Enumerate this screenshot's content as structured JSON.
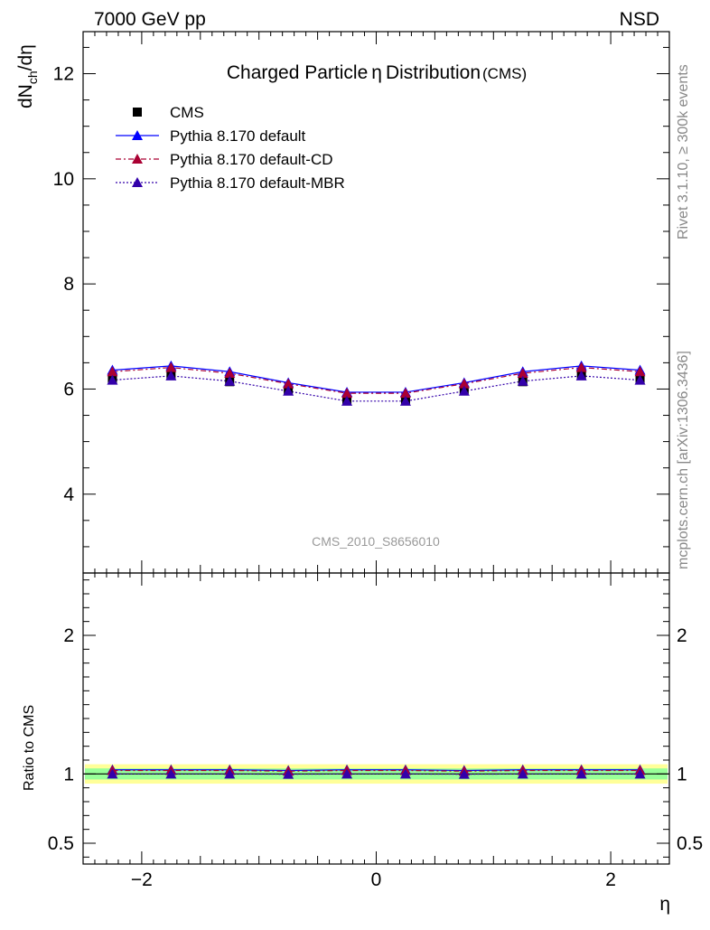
{
  "header": {
    "energy_label": "7000 GeV pp",
    "process_label": "NSD",
    "title": "Charged Particle",
    "title_eta": "η",
    "title_rest": "Distribution",
    "title_suffix": "(CMS)",
    "rivet_label": "Rivet 3.1.10, ≥ 300k events",
    "mcplots_label": "mcplots.cern.ch [arXiv:1306.3436]",
    "analysis_label": "CMS_2010_S8656010"
  },
  "axes": {
    "main_ylabel_d": "dN",
    "main_ylabel_sub": "ch",
    "main_ylabel_rest": "/dη",
    "ratio_ylabel": "Ratio to CMS",
    "xlabel": "η"
  },
  "legend": {
    "entries": [
      {
        "label": "CMS",
        "color": "#000000",
        "marker": "square",
        "line": "none"
      },
      {
        "label": "Pythia 8.170 default",
        "color": "#0000ff",
        "marker": "triangle",
        "line": "solid"
      },
      {
        "label": "Pythia 8.170 default-CD",
        "color": "#aa0033",
        "marker": "triangle",
        "line": "dashdot"
      },
      {
        "label": "Pythia 8.170 default-MBR",
        "color": "#3300aa",
        "marker": "triangle",
        "line": "dotted"
      }
    ]
  },
  "chart_data": {
    "type": "line",
    "x": [
      -2.25,
      -1.75,
      -1.25,
      -0.75,
      -0.25,
      0.25,
      0.75,
      1.25,
      1.75,
      2.25
    ],
    "xlim": [
      -2.5,
      2.5
    ],
    "xticks": [
      -2,
      0,
      2
    ],
    "main": {
      "ylim": [
        2.5,
        12.8
      ],
      "yticks": [
        4,
        6,
        8,
        10,
        12
      ],
      "data": {
        "name": "CMS",
        "values": [
          6.18,
          6.26,
          6.14,
          5.97,
          5.78,
          5.78,
          5.97,
          6.14,
          6.26,
          6.18
        ]
      },
      "series": [
        {
          "name": "Pythia 8.170 default",
          "values": [
            6.36,
            6.44,
            6.33,
            6.12,
            5.94,
            5.94,
            6.12,
            6.33,
            6.44,
            6.36
          ]
        },
        {
          "name": "Pythia 8.170 default-CD",
          "values": [
            6.33,
            6.41,
            6.3,
            6.1,
            5.92,
            5.92,
            6.1,
            6.3,
            6.41,
            6.33
          ]
        },
        {
          "name": "Pythia 8.170 default-MBR",
          "values": [
            6.17,
            6.25,
            6.15,
            5.96,
            5.77,
            5.77,
            5.96,
            6.15,
            6.25,
            6.17
          ]
        }
      ]
    },
    "ratio": {
      "ylim": [
        0.35,
        2.45
      ],
      "yticks": [
        0.5,
        1,
        2
      ],
      "band_inner": [
        0.96,
        1.04
      ],
      "band_outer": [
        0.93,
        1.07
      ],
      "series": [
        {
          "name": "Pythia 8.170 default",
          "values": [
            1.03,
            1.03,
            1.03,
            1.025,
            1.03,
            1.03,
            1.025,
            1.03,
            1.03,
            1.03
          ]
        },
        {
          "name": "Pythia 8.170 default-CD",
          "values": [
            1.025,
            1.025,
            1.025,
            1.02,
            1.025,
            1.025,
            1.02,
            1.025,
            1.025,
            1.025
          ]
        },
        {
          "name": "Pythia 8.170 default-MBR",
          "values": [
            1.0,
            1.0,
            1.0,
            0.998,
            1.0,
            1.0,
            0.998,
            1.0,
            1.0,
            1.0
          ]
        }
      ]
    }
  }
}
